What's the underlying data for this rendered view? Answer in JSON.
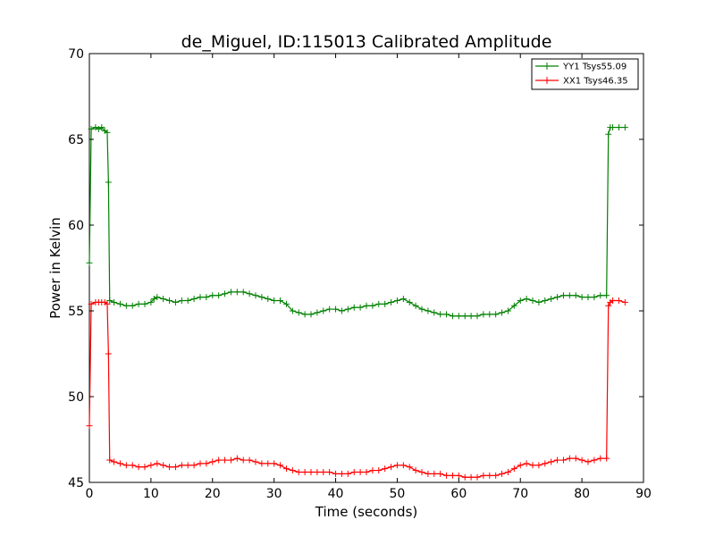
{
  "chart_data": {
    "type": "line",
    "title": "de_Miguel, ID:115013 Calibrated Amplitude",
    "xlabel": "Time (seconds)",
    "ylabel": "Power in Kelvin",
    "xlim": [
      0,
      90
    ],
    "ylim": [
      45,
      70
    ],
    "xticks": [
      0,
      10,
      20,
      30,
      40,
      50,
      60,
      70,
      80,
      90
    ],
    "yticks": [
      45,
      50,
      55,
      60,
      65,
      70
    ],
    "grid": false,
    "legend_position": "top-right",
    "marker": "+",
    "series": [
      {
        "name": "YY1 Tsys55.09",
        "color": "#008000",
        "points": [
          [
            0.0,
            57.8
          ],
          [
            0.3,
            65.6
          ],
          [
            1.0,
            65.7
          ],
          [
            1.5,
            65.6
          ],
          [
            2.0,
            65.7
          ],
          [
            2.5,
            65.5
          ],
          [
            2.9,
            65.4
          ],
          [
            3.1,
            62.5
          ],
          [
            3.3,
            55.6
          ],
          [
            4.0,
            55.5
          ],
          [
            5.0,
            55.4
          ],
          [
            6.0,
            55.3
          ],
          [
            7.0,
            55.3
          ],
          [
            8.0,
            55.4
          ],
          [
            9.0,
            55.4
          ],
          [
            10.0,
            55.5
          ],
          [
            10.5,
            55.7
          ],
          [
            11.0,
            55.8
          ],
          [
            12.0,
            55.7
          ],
          [
            13.0,
            55.6
          ],
          [
            14.0,
            55.5
          ],
          [
            15.0,
            55.6
          ],
          [
            16.0,
            55.6
          ],
          [
            17.0,
            55.7
          ],
          [
            18.0,
            55.8
          ],
          [
            19.0,
            55.8
          ],
          [
            20.0,
            55.9
          ],
          [
            21.0,
            55.9
          ],
          [
            22.0,
            56.0
          ],
          [
            23.0,
            56.1
          ],
          [
            24.0,
            56.1
          ],
          [
            25.0,
            56.1
          ],
          [
            26.0,
            56.0
          ],
          [
            27.0,
            55.9
          ],
          [
            28.0,
            55.8
          ],
          [
            29.0,
            55.7
          ],
          [
            30.0,
            55.6
          ],
          [
            31.0,
            55.6
          ],
          [
            32.0,
            55.4
          ],
          [
            33.0,
            55.0
          ],
          [
            34.0,
            54.9
          ],
          [
            35.0,
            54.8
          ],
          [
            36.0,
            54.8
          ],
          [
            37.0,
            54.9
          ],
          [
            38.0,
            55.0
          ],
          [
            39.0,
            55.1
          ],
          [
            40.0,
            55.1
          ],
          [
            41.0,
            55.0
          ],
          [
            42.0,
            55.1
          ],
          [
            43.0,
            55.2
          ],
          [
            44.0,
            55.2
          ],
          [
            45.0,
            55.3
          ],
          [
            46.0,
            55.3
          ],
          [
            47.0,
            55.4
          ],
          [
            48.0,
            55.4
          ],
          [
            49.0,
            55.5
          ],
          [
            50.0,
            55.6
          ],
          [
            51.0,
            55.7
          ],
          [
            52.0,
            55.5
          ],
          [
            53.0,
            55.3
          ],
          [
            54.0,
            55.1
          ],
          [
            55.0,
            55.0
          ],
          [
            56.0,
            54.9
          ],
          [
            57.0,
            54.8
          ],
          [
            58.0,
            54.8
          ],
          [
            59.0,
            54.7
          ],
          [
            60.0,
            54.7
          ],
          [
            61.0,
            54.7
          ],
          [
            62.0,
            54.7
          ],
          [
            63.0,
            54.7
          ],
          [
            64.0,
            54.8
          ],
          [
            65.0,
            54.8
          ],
          [
            66.0,
            54.8
          ],
          [
            67.0,
            54.9
          ],
          [
            68.0,
            55.0
          ],
          [
            69.0,
            55.3
          ],
          [
            70.0,
            55.6
          ],
          [
            71.0,
            55.7
          ],
          [
            72.0,
            55.6
          ],
          [
            73.0,
            55.5
          ],
          [
            74.0,
            55.6
          ],
          [
            75.0,
            55.7
          ],
          [
            76.0,
            55.8
          ],
          [
            77.0,
            55.9
          ],
          [
            78.0,
            55.9
          ],
          [
            79.0,
            55.9
          ],
          [
            80.0,
            55.8
          ],
          [
            81.0,
            55.8
          ],
          [
            82.0,
            55.8
          ],
          [
            83.0,
            55.9
          ],
          [
            84.0,
            55.9
          ],
          [
            84.3,
            65.3
          ],
          [
            84.6,
            65.7
          ],
          [
            85.0,
            65.7
          ],
          [
            86.0,
            65.7
          ],
          [
            87.0,
            65.7
          ]
        ]
      },
      {
        "name": "XX1 Tsys46.35",
        "color": "#ff0000",
        "points": [
          [
            0.0,
            48.3
          ],
          [
            0.3,
            55.4
          ],
          [
            1.0,
            55.5
          ],
          [
            1.5,
            55.5
          ],
          [
            2.0,
            55.5
          ],
          [
            2.5,
            55.5
          ],
          [
            2.9,
            55.4
          ],
          [
            3.1,
            52.5
          ],
          [
            3.3,
            46.3
          ],
          [
            4.0,
            46.2
          ],
          [
            5.0,
            46.1
          ],
          [
            6.0,
            46.0
          ],
          [
            7.0,
            46.0
          ],
          [
            8.0,
            45.9
          ],
          [
            9.0,
            45.9
          ],
          [
            10.0,
            46.0
          ],
          [
            11.0,
            46.1
          ],
          [
            12.0,
            46.0
          ],
          [
            13.0,
            45.9
          ],
          [
            14.0,
            45.9
          ],
          [
            15.0,
            46.0
          ],
          [
            16.0,
            46.0
          ],
          [
            17.0,
            46.0
          ],
          [
            18.0,
            46.1
          ],
          [
            19.0,
            46.1
          ],
          [
            20.0,
            46.2
          ],
          [
            21.0,
            46.3
          ],
          [
            22.0,
            46.3
          ],
          [
            23.0,
            46.3
          ],
          [
            24.0,
            46.4
          ],
          [
            25.0,
            46.3
          ],
          [
            26.0,
            46.3
          ],
          [
            27.0,
            46.2
          ],
          [
            28.0,
            46.1
          ],
          [
            29.0,
            46.1
          ],
          [
            30.0,
            46.1
          ],
          [
            31.0,
            46.0
          ],
          [
            32.0,
            45.8
          ],
          [
            33.0,
            45.7
          ],
          [
            34.0,
            45.6
          ],
          [
            35.0,
            45.6
          ],
          [
            36.0,
            45.6
          ],
          [
            37.0,
            45.6
          ],
          [
            38.0,
            45.6
          ],
          [
            39.0,
            45.6
          ],
          [
            40.0,
            45.5
          ],
          [
            41.0,
            45.5
          ],
          [
            42.0,
            45.5
          ],
          [
            43.0,
            45.6
          ],
          [
            44.0,
            45.6
          ],
          [
            45.0,
            45.6
          ],
          [
            46.0,
            45.7
          ],
          [
            47.0,
            45.7
          ],
          [
            48.0,
            45.8
          ],
          [
            49.0,
            45.9
          ],
          [
            50.0,
            46.0
          ],
          [
            51.0,
            46.0
          ],
          [
            52.0,
            45.9
          ],
          [
            53.0,
            45.7
          ],
          [
            54.0,
            45.6
          ],
          [
            55.0,
            45.5
          ],
          [
            56.0,
            45.5
          ],
          [
            57.0,
            45.5
          ],
          [
            58.0,
            45.4
          ],
          [
            59.0,
            45.4
          ],
          [
            60.0,
            45.4
          ],
          [
            61.0,
            45.3
          ],
          [
            62.0,
            45.3
          ],
          [
            63.0,
            45.3
          ],
          [
            64.0,
            45.4
          ],
          [
            65.0,
            45.4
          ],
          [
            66.0,
            45.4
          ],
          [
            67.0,
            45.5
          ],
          [
            68.0,
            45.6
          ],
          [
            69.0,
            45.8
          ],
          [
            70.0,
            46.0
          ],
          [
            71.0,
            46.1
          ],
          [
            72.0,
            46.0
          ],
          [
            73.0,
            46.0
          ],
          [
            74.0,
            46.1
          ],
          [
            75.0,
            46.2
          ],
          [
            76.0,
            46.3
          ],
          [
            77.0,
            46.3
          ],
          [
            78.0,
            46.4
          ],
          [
            79.0,
            46.4
          ],
          [
            80.0,
            46.3
          ],
          [
            81.0,
            46.2
          ],
          [
            82.0,
            46.3
          ],
          [
            83.0,
            46.4
          ],
          [
            84.0,
            46.4
          ],
          [
            84.3,
            55.3
          ],
          [
            84.6,
            55.5
          ],
          [
            85.0,
            55.6
          ],
          [
            86.0,
            55.6
          ],
          [
            87.0,
            55.5
          ]
        ]
      }
    ]
  }
}
